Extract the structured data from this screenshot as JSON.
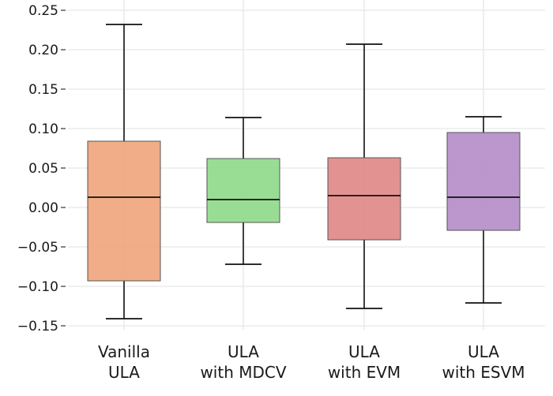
{
  "chart_data": {
    "type": "box",
    "title": "",
    "xlabel": "",
    "ylabel": "",
    "ylim": [
      -0.16,
      0.25
    ],
    "yticks": [
      0.25,
      0.2,
      0.15,
      0.1,
      0.05,
      0.0,
      -0.05,
      -0.1,
      -0.15
    ],
    "ytick_labels": [
      "0.25",
      "0.20",
      "0.15",
      "0.10",
      "0.05",
      "0.00",
      "−0.05",
      "−0.10",
      "−0.15"
    ],
    "grid": true,
    "categories": [
      {
        "line1": "Vanilla",
        "line2": "ULA"
      },
      {
        "line1": "ULA",
        "line2": "with MDCV"
      },
      {
        "line1": "ULA",
        "line2": "with EVM"
      },
      {
        "line1": "ULA",
        "line2": "with ESVM"
      }
    ],
    "boxes": [
      {
        "whisker_low": -0.141,
        "q1": -0.093,
        "median": 0.013,
        "q3": 0.084,
        "whisker_high": 0.232,
        "color": "#f0a47a"
      },
      {
        "whisker_low": -0.072,
        "q1": -0.019,
        "median": 0.01,
        "q3": 0.062,
        "whisker_high": 0.114,
        "color": "#8ed98a"
      },
      {
        "whisker_low": -0.128,
        "q1": -0.041,
        "median": 0.015,
        "q3": 0.063,
        "whisker_high": 0.207,
        "color": "#e08686"
      },
      {
        "whisker_low": -0.121,
        "q1": -0.029,
        "median": 0.013,
        "q3": 0.095,
        "whisker_high": 0.115,
        "color": "#b48cc8"
      }
    ]
  }
}
